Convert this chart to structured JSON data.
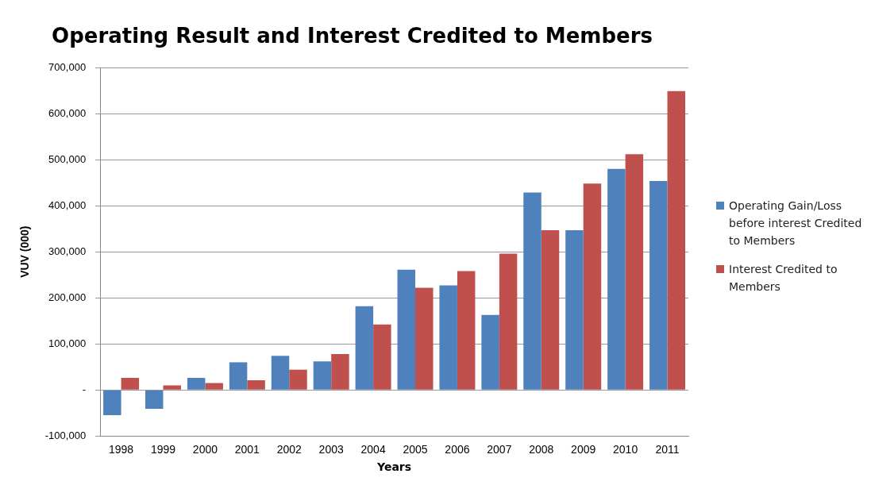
{
  "chart_data": {
    "type": "bar",
    "title": "Operating Result and Interest Credited to Members",
    "xlabel": "Years",
    "ylabel": "VUV (000)",
    "categories": [
      "1998",
      "1999",
      "2000",
      "2001",
      "2002",
      "2003",
      "2004",
      "2005",
      "2006",
      "2007",
      "2008",
      "2009",
      "2010",
      "2011"
    ],
    "series": [
      {
        "name": "Operating Gain/Loss before interest Credited to Members",
        "color": "#4f81bd",
        "values": [
          -55000,
          -41000,
          26000,
          60000,
          74000,
          62000,
          182000,
          261000,
          227000,
          163000,
          429000,
          347000,
          480000,
          454000
        ]
      },
      {
        "name": "Interest Credited to Members",
        "color": "#c0504d",
        "values": [
          26000,
          10000,
          15000,
          21000,
          44000,
          78000,
          142000,
          222000,
          258000,
          296000,
          347000,
          448000,
          512000,
          649000
        ]
      }
    ],
    "ylim": [
      -100000,
      700000
    ],
    "yticks": [
      {
        "value": -100000,
        "label": "-100,000"
      },
      {
        "value": 0,
        "label": "-"
      },
      {
        "value": 100000,
        "label": "100,000"
      },
      {
        "value": 200000,
        "label": "200,000"
      },
      {
        "value": 300000,
        "label": "300,000"
      },
      {
        "value": 400000,
        "label": "400,000"
      },
      {
        "value": 500000,
        "label": "500,000"
      },
      {
        "value": 600000,
        "label": "600,000"
      },
      {
        "value": 700000,
        "label": "700,000"
      }
    ],
    "grid": "y",
    "legend": "right"
  }
}
